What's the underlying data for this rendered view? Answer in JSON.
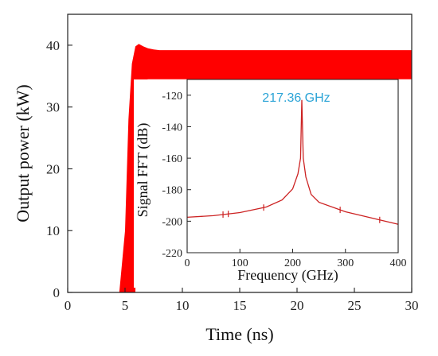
{
  "chart_data": [
    {
      "type": "area",
      "title": "",
      "xlabel": "Time (ns)",
      "ylabel": "Output power (kW)",
      "xlim": [
        0,
        30
      ],
      "ylim": [
        0,
        45
      ],
      "xticks": [
        "0",
        "5",
        "10",
        "15",
        "20",
        "25",
        "30"
      ],
      "yticks": [
        "0",
        "10",
        "20",
        "30",
        "40"
      ],
      "grid": false,
      "color": "#ff0000",
      "series": [
        {
          "x": [
            0,
            4.5,
            5.0,
            5.3,
            5.6,
            5.9,
            6.2,
            6.6,
            7.0,
            7.5,
            8.0,
            9.0,
            30
          ],
          "upper": [
            0,
            0,
            10,
            28,
            37,
            39.8,
            40.2,
            39.8,
            39.5,
            39.3,
            39.2,
            39.2,
            39.2
          ],
          "lower": [
            0,
            0,
            0,
            0,
            0,
            0,
            34.0,
            34.3,
            34.5,
            34.5,
            34.5,
            34.5,
            34.5
          ]
        }
      ]
    },
    {
      "type": "line",
      "title": "",
      "xlabel": "Frequency (GHz)",
      "ylabel": "Signal FFT (dB)",
      "xlim": [
        0,
        400
      ],
      "ylim": [
        -220,
        -110
      ],
      "xticks": [
        "0",
        "100",
        "200",
        "300",
        "400"
      ],
      "yticks": [
        "-220",
        "-200",
        "-180",
        "-160",
        "-140",
        "-120"
      ],
      "annotation": "217.36 GHz",
      "annotation_color": "#29a3d6",
      "color": "#cc2222",
      "series": [
        {
          "x": [
            0,
            50,
            100,
            150,
            180,
            200,
            210,
            215,
            217.36,
            220,
            225,
            235,
            250,
            300,
            350,
            400
          ],
          "y": [
            -197.5,
            -196.5,
            -194.5,
            -191.0,
            -186.5,
            -179.5,
            -170.0,
            -160.0,
            -123.0,
            -160.0,
            -172.0,
            -183.0,
            -188.0,
            -194.0,
            -198.0,
            -202.0
          ]
        }
      ]
    }
  ]
}
